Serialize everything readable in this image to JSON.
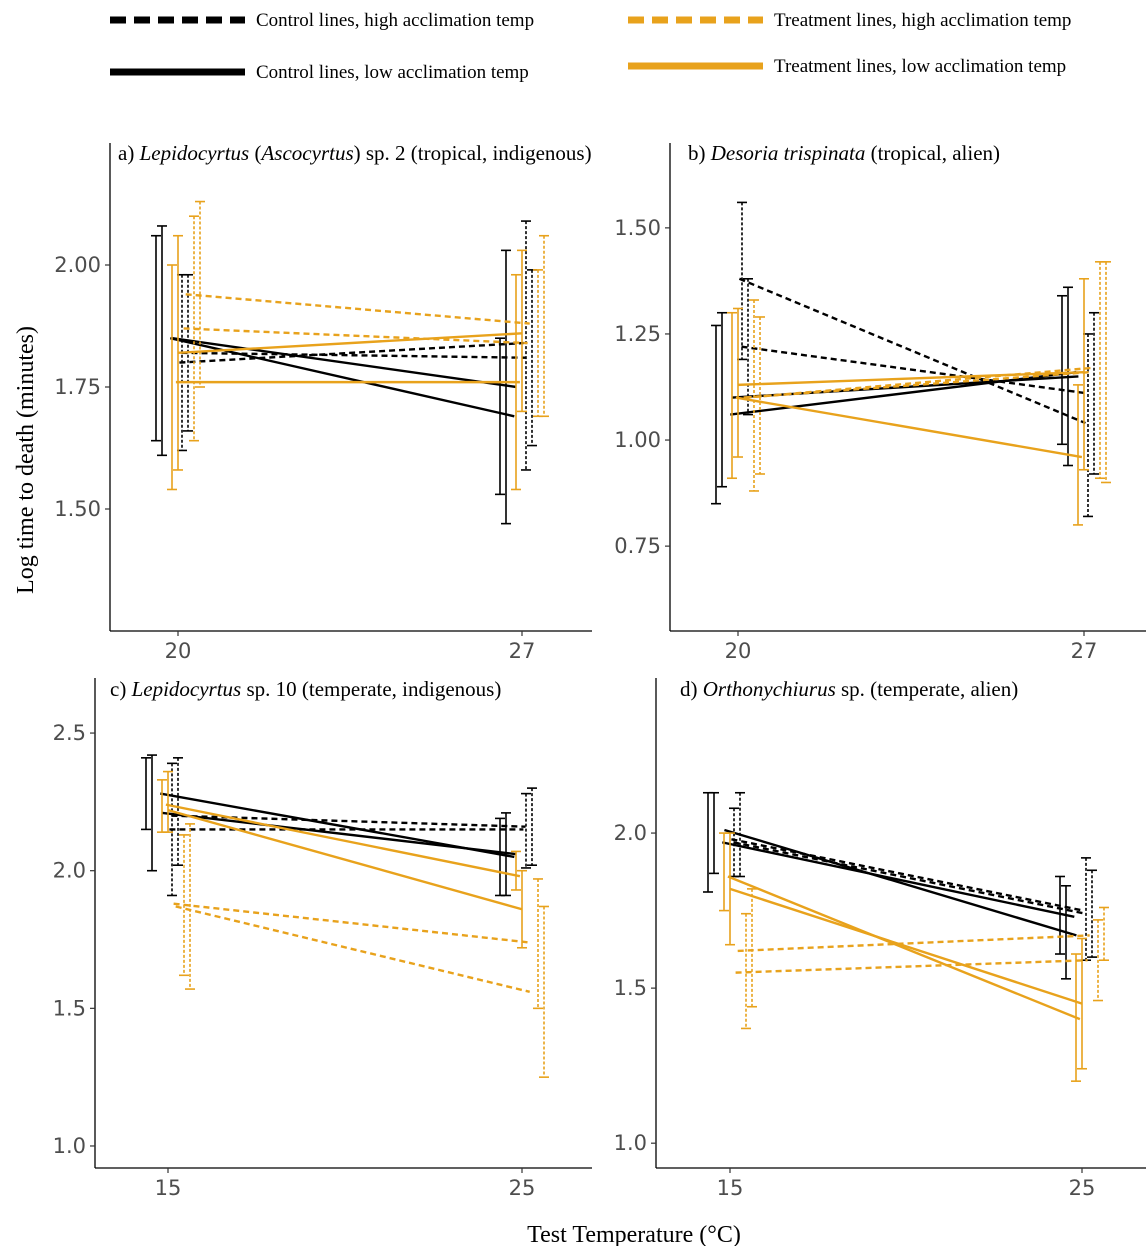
{
  "colors": {
    "control": "#000000",
    "treatment": "#E8A21C"
  },
  "legend": [
    {
      "label": "Control lines, high acclimation temp",
      "group": "control",
      "style": "dashed"
    },
    {
      "label": "Control lines, low acclimation temp",
      "group": "control",
      "style": "solid"
    },
    {
      "label": "Treatment lines, high acclimation temp",
      "group": "treatment",
      "style": "dashed"
    },
    {
      "label": "Treatment lines, low acclimation temp",
      "group": "treatment",
      "style": "solid"
    }
  ],
  "axis_titles": {
    "x": "Test Temperature (°C)",
    "y": "Log time to death (minutes)"
  },
  "chart_data": [
    {
      "type": "line",
      "title": {
        "prefix": "a) ",
        "genus": "Lepidocyrtus",
        "paren_open": " (",
        "subgenus": "Ascocyrtus",
        "rest": ") sp. 2 (tropical, indigenous)"
      },
      "x": [
        20,
        27
      ],
      "ylim": [
        1.25,
        2.25
      ],
      "yticks": [
        "1.50",
        "1.75",
        "2.00"
      ],
      "series": [
        {
          "group": "control",
          "style": "solid",
          "y": [
            1.85,
            1.69
          ],
          "err_lo": [
            1.64,
            1.53
          ],
          "err_hi": [
            2.06,
            1.85
          ]
        },
        {
          "group": "control",
          "style": "solid",
          "y": [
            1.85,
            1.75
          ],
          "err_lo": [
            1.61,
            1.47
          ],
          "err_hi": [
            2.08,
            2.03
          ]
        },
        {
          "group": "control",
          "style": "dashed",
          "y": [
            1.8,
            1.84
          ],
          "err_lo": [
            1.62,
            1.58
          ],
          "err_hi": [
            1.98,
            2.09
          ]
        },
        {
          "group": "control",
          "style": "dashed",
          "y": [
            1.82,
            1.81
          ],
          "err_lo": [
            1.66,
            1.63
          ],
          "err_hi": [
            1.98,
            1.99
          ]
        },
        {
          "group": "treatment",
          "style": "solid",
          "y": [
            1.76,
            1.76
          ],
          "err_lo": [
            1.54,
            1.54
          ],
          "err_hi": [
            2.0,
            1.98
          ]
        },
        {
          "group": "treatment",
          "style": "solid",
          "y": [
            1.82,
            1.86
          ],
          "err_lo": [
            1.58,
            1.7
          ],
          "err_hi": [
            2.06,
            2.03
          ]
        },
        {
          "group": "treatment",
          "style": "dashed",
          "y": [
            1.87,
            1.84
          ],
          "err_lo": [
            1.64,
            1.69
          ],
          "err_hi": [
            2.1,
            1.99
          ]
        },
        {
          "group": "treatment",
          "style": "dashed",
          "y": [
            1.94,
            1.88
          ],
          "err_lo": [
            1.75,
            1.69
          ],
          "err_hi": [
            2.13,
            2.06
          ]
        }
      ]
    },
    {
      "type": "line",
      "title": {
        "prefix": "b) ",
        "genus": "Desoria trispinata",
        "paren_open": "",
        "subgenus": "",
        "rest": " (tropical, alien)"
      },
      "x": [
        20,
        27
      ],
      "ylim": [
        0.55,
        1.7
      ],
      "yticks": [
        "0.75",
        "1.00",
        "1.25",
        "1.50"
      ],
      "series": [
        {
          "group": "control",
          "style": "solid",
          "y": [
            1.06,
            1.16
          ],
          "err_lo": [
            0.85,
            0.99
          ],
          "err_hi": [
            1.27,
            1.34
          ]
        },
        {
          "group": "control",
          "style": "solid",
          "y": [
            1.1,
            1.15
          ],
          "err_lo": [
            0.89,
            0.94
          ],
          "err_hi": [
            1.3,
            1.36
          ]
        },
        {
          "group": "control",
          "style": "dashed",
          "y": [
            1.38,
            1.04
          ],
          "err_lo": [
            1.19,
            0.82
          ],
          "err_hi": [
            1.56,
            1.25
          ]
        },
        {
          "group": "control",
          "style": "dashed",
          "y": [
            1.22,
            1.11
          ],
          "err_lo": [
            1.06,
            0.92
          ],
          "err_hi": [
            1.38,
            1.3
          ]
        },
        {
          "group": "treatment",
          "style": "solid",
          "y": [
            1.1,
            0.96
          ],
          "err_lo": [
            0.91,
            0.8
          ],
          "err_hi": [
            1.3,
            1.13
          ]
        },
        {
          "group": "treatment",
          "style": "solid",
          "y": [
            1.13,
            1.16
          ],
          "err_lo": [
            0.96,
            0.93
          ],
          "err_hi": [
            1.31,
            1.38
          ]
        },
        {
          "group": "treatment",
          "style": "dashed",
          "y": [
            1.1,
            1.16
          ],
          "err_lo": [
            0.88,
            0.91
          ],
          "err_hi": [
            1.33,
            1.42
          ]
        },
        {
          "group": "treatment",
          "style": "dashed",
          "y": [
            1.1,
            1.17
          ],
          "err_lo": [
            0.92,
            0.9
          ],
          "err_hi": [
            1.29,
            1.42
          ]
        }
      ]
    },
    {
      "type": "line",
      "title": {
        "prefix": "c) ",
        "genus": "Lepidocyrtus",
        "paren_open": "",
        "subgenus": "",
        "rest": " sp. 10 (temperate, indigenous)"
      },
      "x": [
        15,
        25
      ],
      "ylim": [
        0.92,
        2.7
      ],
      "yticks": [
        "1.0",
        "1.5",
        "2.0",
        "2.5"
      ],
      "series": [
        {
          "group": "control",
          "style": "solid",
          "y": [
            2.28,
            2.05
          ],
          "err_lo": [
            2.15,
            1.91
          ],
          "err_hi": [
            2.41,
            2.19
          ]
        },
        {
          "group": "control",
          "style": "solid",
          "y": [
            2.21,
            2.06
          ],
          "err_lo": [
            2.0,
            1.91
          ],
          "err_hi": [
            2.42,
            2.21
          ]
        },
        {
          "group": "control",
          "style": "dashed",
          "y": [
            2.15,
            2.15
          ],
          "err_lo": [
            1.91,
            2.01
          ],
          "err_hi": [
            2.39,
            2.28
          ]
        },
        {
          "group": "control",
          "style": "dashed",
          "y": [
            2.2,
            2.16
          ],
          "err_lo": [
            2.02,
            2.02
          ],
          "err_hi": [
            2.41,
            2.3
          ]
        },
        {
          "group": "treatment",
          "style": "solid",
          "y": [
            2.24,
            1.98
          ],
          "err_lo": [
            2.14,
            1.93
          ],
          "err_hi": [
            2.33,
            2.07
          ]
        },
        {
          "group": "treatment",
          "style": "solid",
          "y": [
            2.22,
            1.86
          ],
          "err_lo": [
            2.14,
            1.72
          ],
          "err_hi": [
            2.36,
            2.0
          ]
        },
        {
          "group": "treatment",
          "style": "dashed",
          "y": [
            1.88,
            1.74
          ],
          "err_lo": [
            1.62,
            1.5
          ],
          "err_hi": [
            2.13,
            1.97
          ]
        },
        {
          "group": "treatment",
          "style": "dashed",
          "y": [
            1.87,
            1.56
          ],
          "err_lo": [
            1.57,
            1.25
          ],
          "err_hi": [
            2.17,
            1.87
          ]
        }
      ]
    },
    {
      "type": "line",
      "title": {
        "prefix": "d) ",
        "genus": "Orthonychiurus",
        "paren_open": "",
        "subgenus": "",
        "rest": " sp. (temperate, alien)"
      },
      "x": [
        15,
        25
      ],
      "ylim": [
        0.92,
        2.5
      ],
      "yticks": [
        "1.0",
        "1.5",
        "2.0"
      ],
      "series": [
        {
          "group": "control",
          "style": "solid",
          "y": [
            1.97,
            1.73
          ],
          "err_lo": [
            1.81,
            1.61
          ],
          "err_hi": [
            2.13,
            1.86
          ]
        },
        {
          "group": "control",
          "style": "solid",
          "y": [
            2.01,
            1.67
          ],
          "err_lo": [
            1.87,
            1.53
          ],
          "err_hi": [
            2.13,
            1.83
          ]
        },
        {
          "group": "control",
          "style": "dashed",
          "y": [
            1.98,
            1.75
          ],
          "err_lo": [
            1.86,
            1.59
          ],
          "err_hi": [
            2.08,
            1.92
          ]
        },
        {
          "group": "control",
          "style": "dashed",
          "y": [
            1.97,
            1.74
          ],
          "err_lo": [
            1.86,
            1.6
          ],
          "err_hi": [
            2.13,
            1.88
          ]
        },
        {
          "group": "treatment",
          "style": "solid",
          "y": [
            1.86,
            1.4
          ],
          "err_lo": [
            1.75,
            1.2
          ],
          "err_hi": [
            2.0,
            1.61
          ]
        },
        {
          "group": "treatment",
          "style": "solid",
          "y": [
            1.82,
            1.45
          ],
          "err_lo": [
            1.64,
            1.24
          ],
          "err_hi": [
            2.0,
            1.66
          ]
        },
        {
          "group": "treatment",
          "style": "dashed",
          "y": [
            1.55,
            1.59
          ],
          "err_lo": [
            1.37,
            1.46
          ],
          "err_hi": [
            1.74,
            1.72
          ]
        },
        {
          "group": "treatment",
          "style": "dashed",
          "y": [
            1.62,
            1.67
          ],
          "err_lo": [
            1.44,
            1.59
          ],
          "err_hi": [
            1.82,
            1.76
          ]
        }
      ]
    }
  ]
}
